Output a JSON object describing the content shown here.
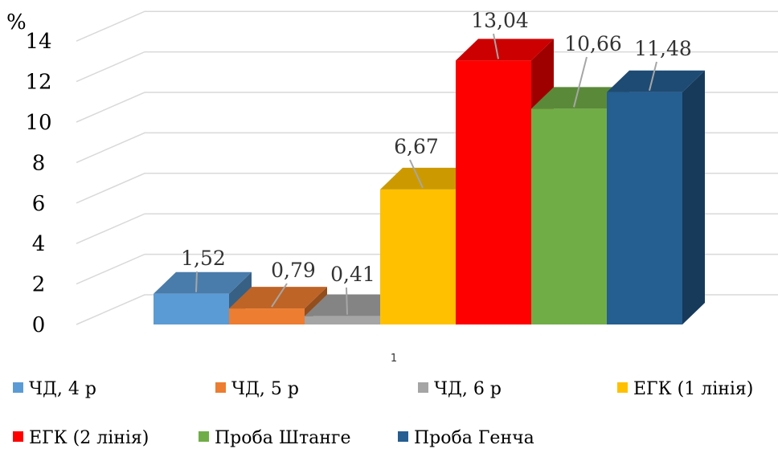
{
  "chart_data": {
    "type": "bar",
    "ylabel": "%",
    "categories": [
      "1"
    ],
    "ylim": [
      0,
      14
    ],
    "yticks": [
      0,
      2,
      4,
      6,
      8,
      10,
      12,
      14
    ],
    "grid": true,
    "legend_position": "bottom",
    "series": [
      {
        "name": "ЧД, 4 р",
        "values": [
          1.52
        ],
        "label": "1,52",
        "color": "#5B9BD5"
      },
      {
        "name": "ЧД, 5 р",
        "values": [
          0.79
        ],
        "label": "0,79",
        "color": "#ED7D31"
      },
      {
        "name": "ЧД, 6 р",
        "values": [
          0.41
        ],
        "label": "0,41",
        "color": "#A5A5A5"
      },
      {
        "name": "ЕГК (1 лінія)",
        "values": [
          6.67
        ],
        "label": "6,67",
        "color": "#FFC000"
      },
      {
        "name": "ЕГК (2 лінія)",
        "values": [
          13.04
        ],
        "label": "13,04",
        "color": "#FF0000"
      },
      {
        "name": "Проба Штанге",
        "values": [
          10.66
        ],
        "label": "10,66",
        "color": "#70AD47"
      },
      {
        "name": "Проба Генча",
        "values": [
          11.48
        ],
        "label": "11,48",
        "color": "#255E91"
      }
    ]
  }
}
